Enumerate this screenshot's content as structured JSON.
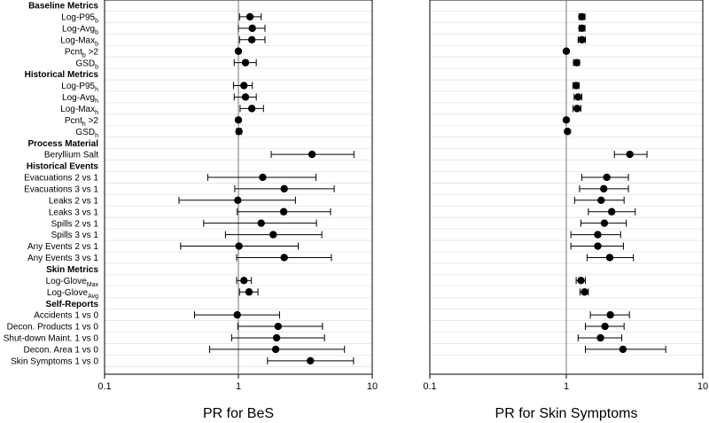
{
  "chart_data": [
    {
      "type": "forest",
      "xlabel": "PR for BeS",
      "xscale": "log",
      "xlim": [
        0.1,
        10
      ],
      "x_ticks": [
        "0.1",
        "1",
        "10"
      ],
      "reference_line": 1,
      "grid": true,
      "rows": [
        {
          "label": "Baseline Metrics",
          "kind": "header"
        },
        {
          "label": "Log-P95",
          "sub": "b",
          "est": 1.22,
          "lo": 1.02,
          "hi": 1.48
        },
        {
          "label": "Log-Avg",
          "sub": "b",
          "est": 1.27,
          "lo": 1.0,
          "hi": 1.58
        },
        {
          "label": "Log-Max",
          "sub": "b",
          "est": 1.26,
          "lo": 1.02,
          "hi": 1.58
        },
        {
          "label": "Pcnt",
          "sub": "b",
          "suffix": " >2",
          "est": 1.0,
          "lo": 1.0,
          "hi": 1.0
        },
        {
          "label": "GSD",
          "sub": "b",
          "est": 1.13,
          "lo": 0.93,
          "hi": 1.36
        },
        {
          "label": "Historical Metrics",
          "kind": "header"
        },
        {
          "label": "Log-P95",
          "sub": "h",
          "est": 1.1,
          "lo": 0.92,
          "hi": 1.27
        },
        {
          "label": "Log-Avg",
          "sub": "h",
          "est": 1.13,
          "lo": 0.93,
          "hi": 1.36
        },
        {
          "label": "Log-Max",
          "sub": "h",
          "est": 1.26,
          "lo": 1.03,
          "hi": 1.54
        },
        {
          "label": "Pcnt",
          "sub": "h",
          "suffix": " >2",
          "est": 1.0,
          "lo": 1.0,
          "hi": 1.0
        },
        {
          "label": "GSD",
          "sub": "h",
          "est": 1.01,
          "lo": 0.97,
          "hi": 1.05
        },
        {
          "label": "Process Material",
          "kind": "header"
        },
        {
          "label": "Beryllium Salt",
          "est": 3.55,
          "lo": 1.76,
          "hi": 7.3
        },
        {
          "label": "Historical Events",
          "kind": "header"
        },
        {
          "label": "Evacuations 2 vs 1",
          "est": 1.52,
          "lo": 0.59,
          "hi": 3.8
        },
        {
          "label": "Evacuations 3 vs 1",
          "est": 2.2,
          "lo": 0.94,
          "hi": 5.2
        },
        {
          "label": "Leaks 2 vs 1",
          "est": 0.99,
          "lo": 0.36,
          "hi": 2.67
        },
        {
          "label": "Leaks 3 vs 1",
          "est": 2.18,
          "lo": 0.98,
          "hi": 4.88
        },
        {
          "label": "Spills 2 vs 1",
          "est": 1.48,
          "lo": 0.55,
          "hi": 3.83
        },
        {
          "label": "Spills 3 vs 1",
          "est": 1.82,
          "lo": 0.8,
          "hi": 4.2
        },
        {
          "label": "Any Events  2 vs 1",
          "est": 1.01,
          "lo": 0.37,
          "hi": 2.8
        },
        {
          "label": "Any Events 3 vs 1",
          "est": 2.2,
          "lo": 0.97,
          "hi": 4.95
        },
        {
          "label": "Skin Metrics",
          "kind": "header"
        },
        {
          "label": "Log-Glove",
          "sub": "Max",
          "est": 1.1,
          "lo": 0.97,
          "hi": 1.25
        },
        {
          "label": "Log-Glove",
          "sub": "Avg",
          "est": 1.2,
          "lo": 1.02,
          "hi": 1.4
        },
        {
          "label": "Self-Reports",
          "kind": "header"
        },
        {
          "label": "Accidents 1 vs 0",
          "est": 0.98,
          "lo": 0.47,
          "hi": 2.03
        },
        {
          "label": "Decon. Products 1 vs 0",
          "est": 1.98,
          "lo": 0.99,
          "hi": 4.25
        },
        {
          "label": "Shut-down Maint. 1 vs 0",
          "est": 1.93,
          "lo": 0.89,
          "hi": 4.4
        },
        {
          "label": "Decon. Area 1 vs 0",
          "est": 1.9,
          "lo": 0.61,
          "hi": 6.2
        },
        {
          "label": "Skin Symptoms 1 vs 0",
          "est": 3.45,
          "lo": 1.65,
          "hi": 7.25
        }
      ]
    },
    {
      "type": "forest",
      "xlabel": "PR for Skin Symptoms",
      "xscale": "log",
      "xlim": [
        0.1,
        10
      ],
      "x_ticks": [
        "0.1",
        "1",
        "10"
      ],
      "reference_line": 1,
      "grid": true,
      "rows": [
        {
          "kind": "header"
        },
        {
          "est": 1.3,
          "lo": 1.24,
          "hi": 1.37
        },
        {
          "est": 1.3,
          "lo": 1.24,
          "hi": 1.37
        },
        {
          "est": 1.3,
          "lo": 1.22,
          "hi": 1.38
        },
        {
          "est": 1.0,
          "lo": 1.0,
          "hi": 1.0
        },
        {
          "est": 1.19,
          "lo": 1.13,
          "hi": 1.25
        },
        {
          "kind": "header"
        },
        {
          "est": 1.18,
          "lo": 1.12,
          "hi": 1.24
        },
        {
          "est": 1.22,
          "lo": 1.14,
          "hi": 1.3
        },
        {
          "est": 1.2,
          "lo": 1.12,
          "hi": 1.28
        },
        {
          "est": 1.0,
          "lo": 1.0,
          "hi": 1.0
        },
        {
          "est": 1.02,
          "lo": 1.0,
          "hi": 1.04
        },
        {
          "kind": "header"
        },
        {
          "est": 2.92,
          "lo": 2.25,
          "hi": 3.9
        },
        {
          "kind": "header"
        },
        {
          "est": 1.98,
          "lo": 1.3,
          "hi": 2.85
        },
        {
          "est": 1.88,
          "lo": 1.25,
          "hi": 2.85
        },
        {
          "est": 1.8,
          "lo": 1.15,
          "hi": 2.65
        },
        {
          "est": 2.15,
          "lo": 1.45,
          "hi": 3.2
        },
        {
          "est": 1.9,
          "lo": 1.28,
          "hi": 2.75
        },
        {
          "est": 1.7,
          "lo": 1.08,
          "hi": 2.5
        },
        {
          "est": 1.7,
          "lo": 1.08,
          "hi": 2.62
        },
        {
          "est": 2.08,
          "lo": 1.42,
          "hi": 3.1
        },
        {
          "kind": "header"
        },
        {
          "est": 1.28,
          "lo": 1.18,
          "hi": 1.38
        },
        {
          "est": 1.36,
          "lo": 1.26,
          "hi": 1.45
        },
        {
          "kind": "header"
        },
        {
          "est": 2.1,
          "lo": 1.5,
          "hi": 2.9
        },
        {
          "est": 1.92,
          "lo": 1.38,
          "hi": 2.65
        },
        {
          "est": 1.78,
          "lo": 1.22,
          "hi": 2.55
        },
        {
          "est": 2.6,
          "lo": 1.38,
          "hi": 5.35
        }
      ]
    }
  ]
}
